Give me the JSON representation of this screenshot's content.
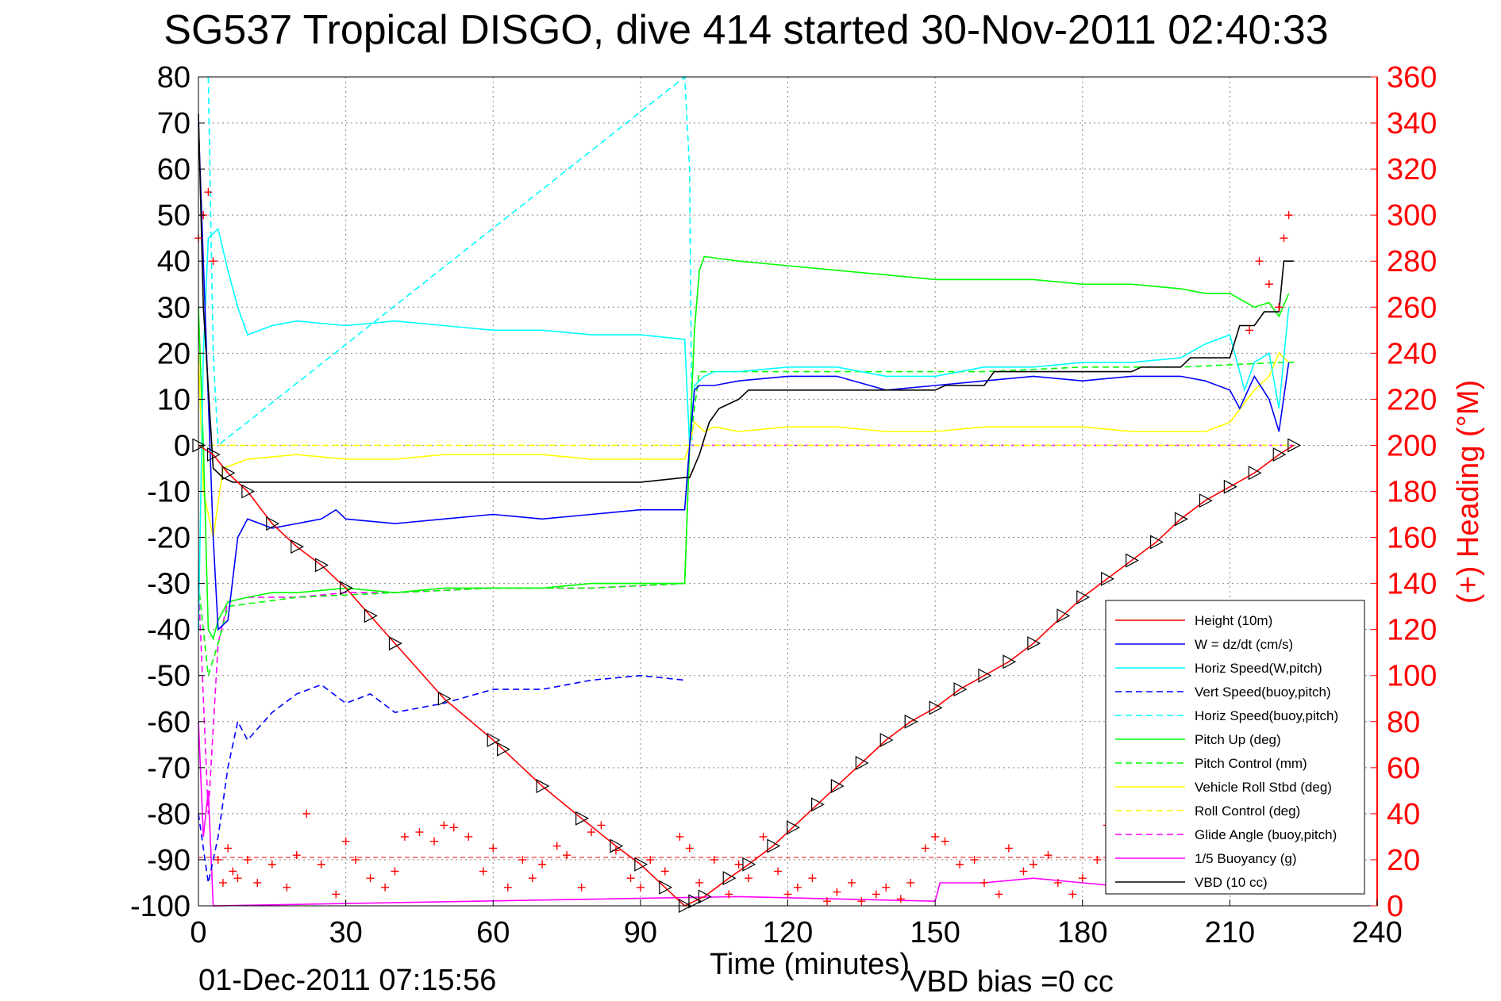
{
  "chart_data": {
    "type": "line",
    "title": "SG537 Tropical DISGO, dive 414 started 30-Nov-2011 02:40:33",
    "xlabel": "Time (minutes)",
    "ylabel_right": "(+) Heading (°M)",
    "footer_left": "01-Dec-2011 07:15:56",
    "footer_right": "VBD bias =0 cc",
    "xlim": [
      0,
      240
    ],
    "ylim": [
      -100,
      80
    ],
    "ylim_right": [
      0,
      360
    ],
    "xticks": [
      "0",
      "30",
      "60",
      "90",
      "120",
      "150",
      "180",
      "210",
      "240"
    ],
    "yticks": [
      "80",
      "70",
      "60",
      "50",
      "40",
      "30",
      "20",
      "10",
      "0",
      "-10",
      "-20",
      "-30",
      "-40",
      "-50",
      "-60",
      "-70",
      "-80",
      "-90",
      "-100"
    ],
    "yticks_right": [
      "360",
      "340",
      "320",
      "300",
      "280",
      "260",
      "240",
      "220",
      "200",
      "180",
      "160",
      "140",
      "120",
      "100",
      "80",
      "60",
      "40",
      "20",
      "0"
    ],
    "grid": true,
    "legend_position": "bottom-right",
    "colors": {
      "height": "#ff0000",
      "w": "#0000ff",
      "horiz_w": "#00ffff",
      "vert_buoy": "#0000ff",
      "horiz_buoy": "#00ffff",
      "pitch": "#00ff00",
      "pitch_ctrl": "#00ff00",
      "roll": "#ffff00",
      "roll_ctrl": "#ffff00",
      "glide": "#ff00ff",
      "buoyancy": "#ff00ff",
      "vbd": "#000000",
      "heading": "#ff0000",
      "right_axis": "#ff0000"
    },
    "series": [
      {
        "key": "height",
        "name": "Height (10m)",
        "style": "solid",
        "x": [
          0,
          3,
          6,
          10,
          15,
          20,
          25,
          30,
          35,
          40,
          50,
          60,
          62,
          70,
          78,
          85,
          90,
          95,
          99,
          101,
          103,
          108,
          112,
          117,
          121,
          126,
          130,
          135,
          140,
          145,
          150,
          155,
          160,
          165,
          170,
          176,
          180,
          185,
          190,
          195,
          200,
          205,
          210,
          215,
          220,
          223
        ],
        "y": [
          0,
          -2,
          -6,
          -10,
          -17,
          -22,
          -26,
          -31,
          -37,
          -43,
          -55,
          -64,
          -66,
          -74,
          -81,
          -87,
          -91,
          -96,
          -100,
          -99,
          -98,
          -94,
          -91,
          -87,
          -83,
          -78,
          -74,
          -69,
          -64,
          -60,
          -57,
          -53,
          -50,
          -47,
          -43,
          -37,
          -33,
          -29,
          -25,
          -21,
          -16,
          -12,
          -9,
          -6,
          -2,
          0
        ]
      },
      {
        "key": "w",
        "name": "W = dz/dt (cm/s)",
        "style": "solid",
        "x": [
          0,
          1,
          2,
          3,
          4,
          6,
          8,
          10,
          15,
          20,
          25,
          28,
          30,
          40,
          50,
          60,
          70,
          80,
          90,
          99,
          100,
          101,
          102,
          105,
          110,
          120,
          130,
          140,
          150,
          160,
          170,
          180,
          190,
          200,
          205,
          210,
          212,
          215,
          218,
          220,
          222
        ],
        "y": [
          70,
          40,
          10,
          -20,
          -40,
          -38,
          -20,
          -16,
          -18,
          -17,
          -16,
          -14,
          -16,
          -17,
          -16,
          -15,
          -16,
          -15,
          -14,
          -14,
          0,
          12,
          13,
          13,
          14,
          15,
          15,
          12,
          13,
          14,
          15,
          14,
          15,
          15,
          14,
          12,
          8,
          15,
          10,
          3,
          18
        ]
      },
      {
        "key": "horiz_w",
        "name": "Horiz Speed(W,pitch)",
        "style": "solid",
        "x": [
          0,
          1,
          2,
          4,
          6,
          8,
          10,
          15,
          20,
          30,
          40,
          50,
          60,
          70,
          80,
          90,
          99,
          100,
          101,
          103,
          105,
          110,
          120,
          130,
          140,
          150,
          160,
          170,
          180,
          190,
          200,
          205,
          210,
          213,
          215,
          218,
          220,
          222
        ],
        "y": [
          -40,
          20,
          45,
          47,
          38,
          30,
          24,
          26,
          27,
          26,
          27,
          26,
          25,
          25,
          24,
          24,
          23,
          0,
          13,
          15,
          16,
          16,
          17,
          17,
          15,
          15,
          17,
          17,
          18,
          18,
          19,
          22,
          24,
          12,
          18,
          20,
          8,
          30
        ]
      },
      {
        "key": "vert_buoy",
        "name": "Vert Speed(buoy,pitch)",
        "style": "dashed",
        "x": [
          0,
          2,
          4,
          6,
          8,
          10,
          15,
          20,
          25,
          30,
          35,
          40,
          50,
          60,
          70,
          80,
          90,
          99
        ],
        "y": [
          -80,
          -95,
          -85,
          -70,
          -60,
          -64,
          -58,
          -54,
          -52,
          -56,
          -54,
          -58,
          -56,
          -53,
          -53,
          -51,
          -50,
          -51
        ]
      },
      {
        "key": "horiz_buoy",
        "name": "Horiz Speed(buoy,pitch)",
        "style": "dashed",
        "x": [
          2,
          3,
          4,
          99,
          100,
          100.5
        ],
        "y": [
          80,
          20,
          0,
          80,
          60,
          0
        ]
      },
      {
        "key": "pitch",
        "name": "Pitch Up (deg)",
        "style": "solid",
        "x": [
          0,
          1,
          2,
          3,
          4,
          6,
          10,
          15,
          20,
          30,
          40,
          50,
          60,
          70,
          80,
          90,
          99,
          100,
          101,
          102,
          103,
          110,
          120,
          130,
          140,
          150,
          160,
          170,
          180,
          190,
          200,
          205,
          210,
          215,
          218,
          220,
          222
        ],
        "y": [
          30,
          0,
          -40,
          -42,
          -38,
          -34,
          -33,
          -32,
          -32,
          -31,
          -32,
          -31,
          -31,
          -31,
          -30,
          -30,
          -30,
          0,
          25,
          38,
          41,
          40,
          39,
          38,
          37,
          36,
          36,
          36,
          35,
          35,
          34,
          33,
          33,
          30,
          31,
          28,
          33
        ]
      },
      {
        "key": "pitch_ctrl",
        "name": "Pitch Control (mm)",
        "style": "dashed",
        "x": [
          0,
          2,
          4,
          6,
          20,
          40,
          60,
          80,
          99,
          100,
          102,
          120,
          140,
          160,
          180,
          200,
          220,
          223
        ],
        "y": [
          -30,
          -50,
          -43,
          -35,
          -33,
          -32,
          -31,
          -31,
          -30,
          0,
          16,
          16,
          16,
          16,
          17,
          17,
          18,
          18
        ]
      },
      {
        "key": "roll",
        "name": "Vehicle Roll Stbd (deg)",
        "style": "solid",
        "x": [
          0,
          1,
          2,
          3,
          5,
          10,
          20,
          30,
          40,
          50,
          60,
          70,
          80,
          90,
          99,
          100,
          101,
          103,
          105,
          110,
          120,
          130,
          140,
          150,
          160,
          170,
          180,
          190,
          200,
          205,
          210,
          215,
          218,
          220,
          222
        ],
        "y": [
          20,
          -10,
          -15,
          -20,
          -5,
          -3,
          -2,
          -3,
          -3,
          -2,
          -2,
          -2,
          -3,
          -3,
          -3,
          0,
          5,
          3,
          4,
          3,
          4,
          4,
          3,
          3,
          4,
          4,
          4,
          3,
          3,
          3,
          5,
          12,
          15,
          20,
          18
        ]
      },
      {
        "key": "roll_ctrl",
        "name": "Roll Control (deg)",
        "style": "dashed",
        "x": [
          0,
          99,
          100,
          223
        ],
        "y": [
          0,
          0,
          0,
          0
        ]
      },
      {
        "key": "glide",
        "name": "Glide Angle (buoy,pitch)",
        "style": "dashed",
        "x": [
          0,
          2,
          4,
          6,
          10,
          20,
          30,
          40,
          60,
          80,
          99,
          100,
          223
        ],
        "y": [
          -30,
          -80,
          -43,
          -34,
          -33,
          -33,
          -32,
          -32,
          -31,
          -31,
          -30,
          0,
          0
        ]
      },
      {
        "key": "buoyancy",
        "name": "1/5 Buoyancy (g)",
        "style": "solid",
        "x": [
          0,
          1,
          2,
          3,
          110,
          150,
          151,
          160,
          170,
          180,
          190,
          200
        ],
        "y": [
          -60,
          -85,
          -75,
          -100,
          -98,
          -99,
          -95,
          -95,
          -94,
          -95,
          -96,
          -96
        ]
      },
      {
        "key": "vbd",
        "name": "VBD (10 cc)",
        "style": "solid",
        "x": [
          0,
          1,
          3,
          5,
          7,
          10,
          30,
          50,
          70,
          90,
          99,
          100,
          102,
          104,
          106,
          110,
          112,
          116,
          150,
          152,
          160,
          162,
          190,
          192,
          200,
          202,
          210,
          212,
          215,
          217,
          220,
          221,
          223
        ],
        "y": [
          72,
          30,
          -5,
          -7,
          -8,
          -8,
          -8,
          -8,
          -8,
          -8,
          -7,
          -7,
          -2,
          5,
          8,
          10,
          12,
          12,
          12,
          13,
          13,
          16,
          16,
          17,
          17,
          19,
          19,
          26,
          26,
          29,
          29,
          40,
          40
        ]
      }
    ],
    "heading_x": [
      0,
      1,
      2,
      3,
      4,
      5,
      6,
      7,
      8,
      10,
      12,
      15,
      18,
      20,
      22,
      25,
      28,
      30,
      32,
      35,
      38,
      40,
      42,
      45,
      48,
      50,
      52,
      55,
      58,
      60,
      63,
      66,
      68,
      70,
      73,
      75,
      78,
      80,
      82,
      85,
      88,
      90,
      92,
      95,
      98,
      100,
      102,
      105,
      108,
      110,
      112,
      115,
      118,
      120,
      122,
      125,
      128,
      130,
      133,
      135,
      138,
      140,
      143,
      145,
      148,
      150,
      152,
      155,
      158,
      160,
      163,
      165,
      168,
      170,
      173,
      175,
      178,
      180,
      183,
      185,
      188,
      190,
      193,
      195,
      198,
      200,
      203,
      205,
      208,
      210,
      212,
      214,
      216,
      218,
      220,
      221,
      222
    ],
    "heading_y": [
      290,
      300,
      310,
      280,
      20,
      10,
      25,
      15,
      12,
      20,
      10,
      18,
      8,
      22,
      40,
      18,
      5,
      28,
      20,
      12,
      8,
      15,
      30,
      32,
      28,
      35,
      34,
      30,
      15,
      25,
      8,
      20,
      12,
      18,
      26,
      22,
      8,
      32,
      35,
      24,
      12,
      8,
      20,
      15,
      30,
      25,
      10,
      20,
      5,
      18,
      12,
      30,
      15,
      5,
      8,
      12,
      2,
      6,
      10,
      2,
      5,
      8,
      3,
      10,
      25,
      30,
      28,
      18,
      20,
      10,
      5,
      25,
      15,
      18,
      22,
      10,
      5,
      12,
      20,
      35,
      25,
      18,
      10,
      15,
      20,
      22,
      28,
      12,
      18,
      30,
      25,
      250,
      280,
      270,
      260,
      290,
      300
    ]
  }
}
